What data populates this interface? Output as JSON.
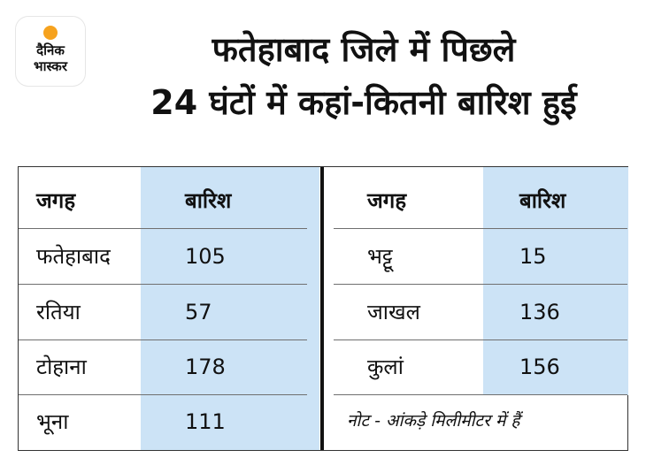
{
  "logo": {
    "line1": "दैनिक",
    "line2": "भास्कर"
  },
  "title": {
    "line1": "फतेहाबाद जिले में पिछले",
    "line2": "24 घंटों में कहां-कितनी बारिश हुई"
  },
  "tables": {
    "left": {
      "header": {
        "place": "जगह",
        "rain": "बारिश"
      },
      "rows": [
        {
          "place": "फतेहाबाद",
          "rain": "105"
        },
        {
          "place": "रतिया",
          "rain": "57"
        },
        {
          "place": "टोहाना",
          "rain": "178"
        },
        {
          "place": "भूना",
          "rain": "111"
        }
      ]
    },
    "right": {
      "header": {
        "place": "जगह",
        "rain": "बारिश"
      },
      "rows": [
        {
          "place": "भट्टू",
          "rain": "15"
        },
        {
          "place": "जाखल",
          "rain": "136"
        },
        {
          "place": "कुलां",
          "rain": "156"
        }
      ]
    }
  },
  "note": "नोट - आंकड़े मिलीमीटर में हैं",
  "colors": {
    "shade": "#cce3f6",
    "logo_sun": "#f6a21e"
  }
}
